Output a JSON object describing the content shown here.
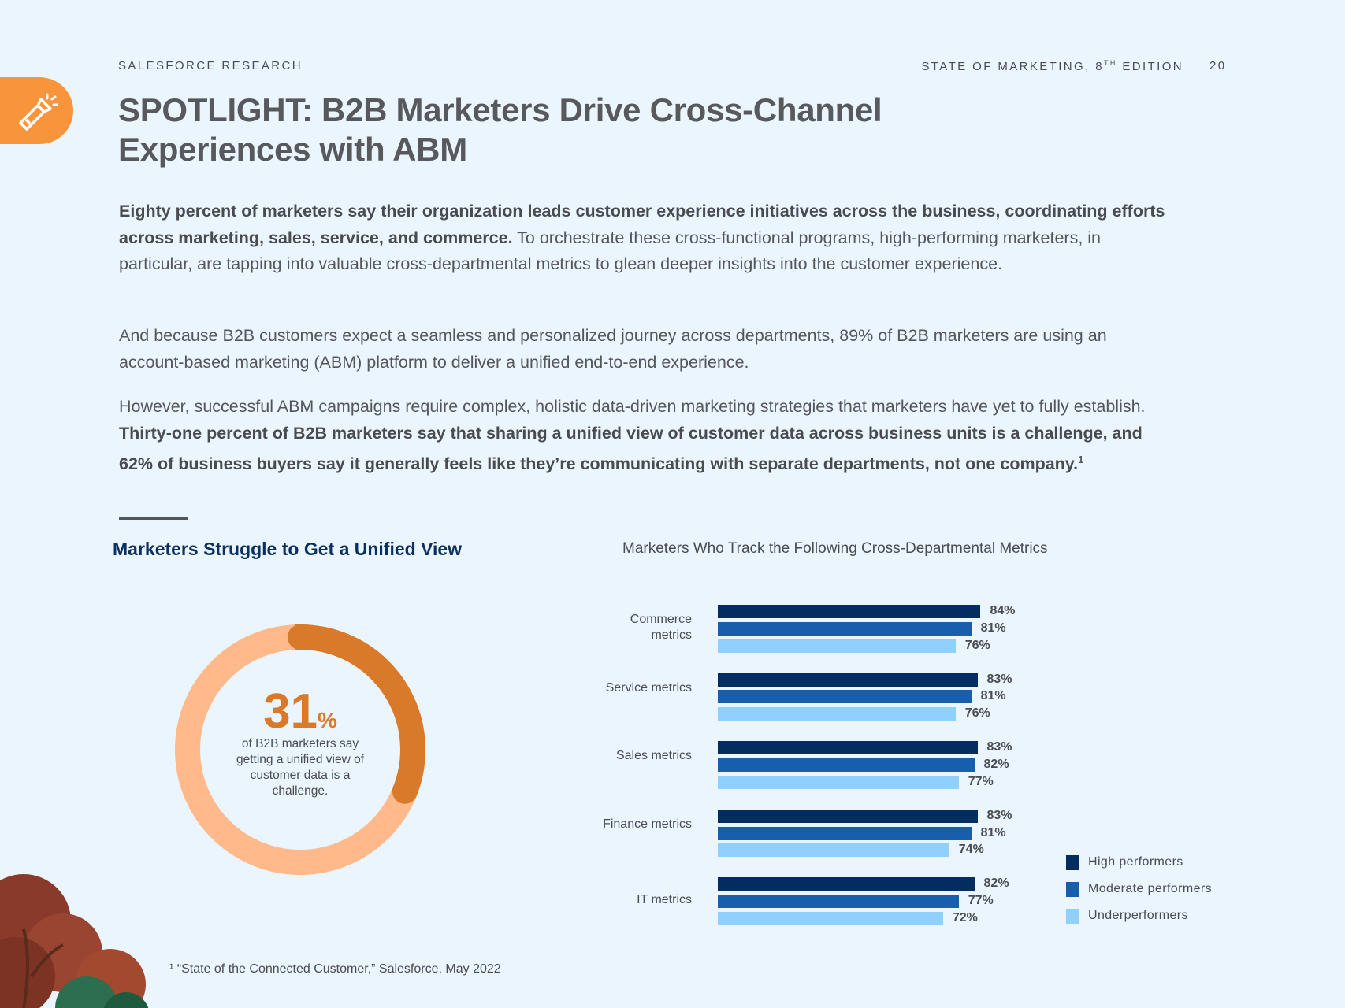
{
  "header": {
    "left": "SALESFORCE RESEARCH",
    "right": "STATE OF MARKETING, 8",
    "right_sup": "TH",
    "right_end": " EDITION",
    "page": "20"
  },
  "title_line1": "SPOTLIGHT: B2B Marketers Drive Cross-Channel",
  "title_line2": "Experiences with ABM",
  "p1_bold": "Eighty percent of marketers say their organization leads customer experience initiatives across the business, coordinating efforts across marketing, sales, service, and commerce.",
  "p1_rest": " To orchestrate these cross-functional programs, high-performing marketers, in particular, are tapping into valuable cross-departmental metrics to glean deeper insights into the customer experience.",
  "p2": "And because B2B customers expect a seamless and personalized journey across departments, 89% of B2B marketers are using an account-based marketing (ABM) platform to deliver a unified end-to-end experience.",
  "p3_start": "However, successful ABM campaigns require complex, holistic data-driven marketing strategies that marketers have yet to fully establish. ",
  "p3_bold": "Thirty-one percent of B2B marketers say that sharing a unified view of customer data across business units is a challenge, and 62% of business buyers say it generally feels like they’re communicating with separate departments, not one company.",
  "p3_sup": "1",
  "left_title": "Marketers Struggle to Get a Unified View",
  "donut": {
    "value": 31,
    "number": "31",
    "unit": "%",
    "caption": "of B2B marketers say getting a unified view of customer data is a challenge.",
    "colors": {
      "fill": "#d97a2a",
      "track": "#ffb98a"
    }
  },
  "footnote": "¹ “State of the Connected Customer,” Salesforce, May 2022",
  "chart_data": {
    "type": "bar",
    "orientation": "horizontal",
    "title": "Marketers Who Track the Following Cross-Departmental Metrics",
    "categories": [
      "Commerce metrics",
      "Service metrics",
      "Sales metrics",
      "Finance metrics",
      "IT metrics"
    ],
    "series": [
      {
        "name": "High performers",
        "color": "#032d60",
        "values": [
          84,
          83,
          83,
          83,
          82
        ]
      },
      {
        "name": "Moderate performers",
        "color": "#175fac",
        "values": [
          81,
          81,
          82,
          81,
          77
        ]
      },
      {
        "name": "Underperformers",
        "color": "#90d0fe",
        "values": [
          76,
          76,
          77,
          74,
          72
        ]
      }
    ],
    "unit": "%",
    "xlim": [
      0,
      100
    ],
    "legend": "bottom-right"
  }
}
